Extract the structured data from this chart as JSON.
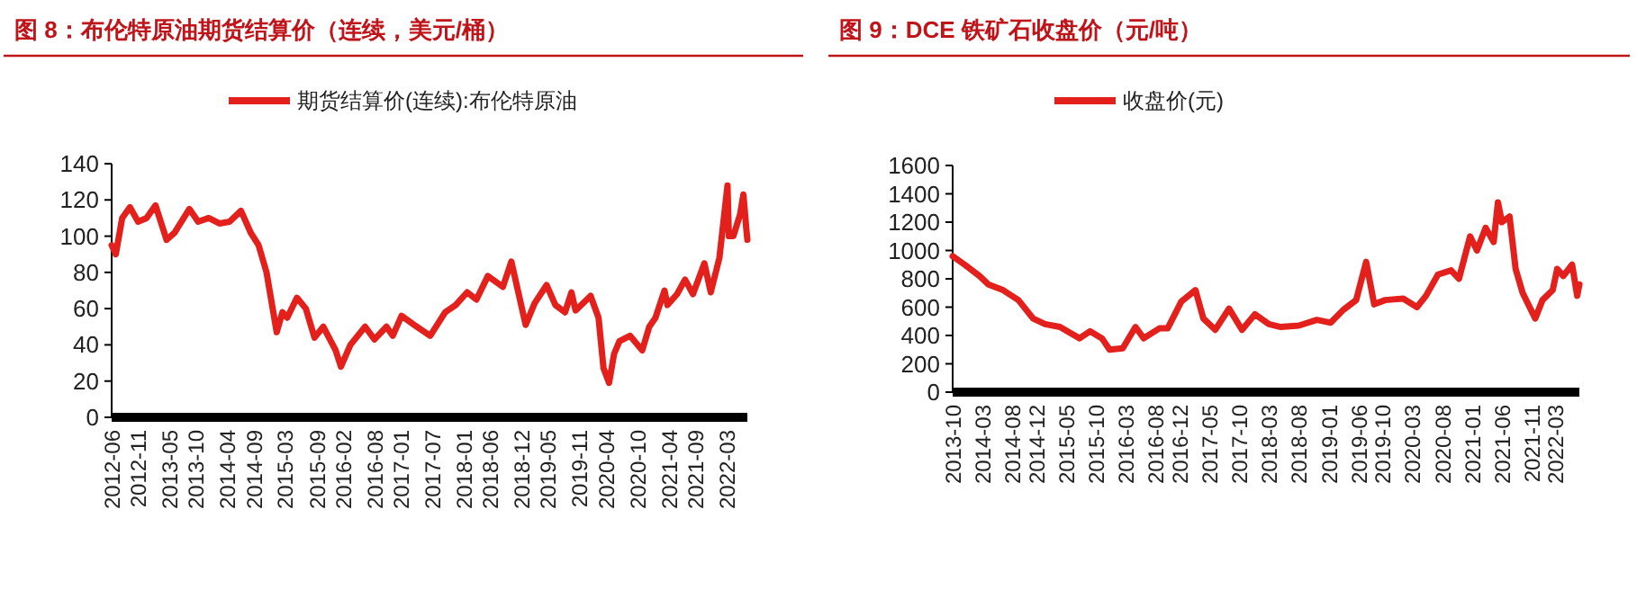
{
  "chart_data": [
    {
      "type": "line",
      "title": "图 8：布伦特原油期货结算价（连续，美元/桶）",
      "legend": "top",
      "grid": false,
      "xlim": [
        "2012-06",
        "2022-07"
      ],
      "ylim": [
        0,
        140
      ],
      "yticks": [
        0,
        20,
        40,
        60,
        80,
        100,
        120,
        140
      ],
      "xticks": [
        "2012-06",
        "2012-11",
        "2013-05",
        "2013-10",
        "2014-04",
        "2014-09",
        "2015-03",
        "2015-09",
        "2016-02",
        "2016-08",
        "2017-01",
        "2017-07",
        "2018-01",
        "2018-06",
        "2018-12",
        "2019-05",
        "2019-11",
        "2020-04",
        "2020-10",
        "2021-04",
        "2021-09",
        "2022-03"
      ],
      "series": [
        {
          "name": "期货结算价(连续):布伦特原油",
          "color": "#e3201b",
          "x": [
            "2012-06-01",
            "2012-06-25",
            "2012-08-01",
            "2012-09-15",
            "2012-11-01",
            "2012-12-20",
            "2013-02-10",
            "2013-04-15",
            "2013-06-01",
            "2013-08-25",
            "2013-10-15",
            "2013-12-15",
            "2014-02-15",
            "2014-04-15",
            "2014-06-20",
            "2014-08-15",
            "2014-09-30",
            "2014-11-15",
            "2015-01-13",
            "2015-02-15",
            "2015-03-15",
            "2015-05-10",
            "2015-07-01",
            "2015-08-20",
            "2015-10-10",
            "2015-12-20",
            "2016-01-20",
            "2016-03-15",
            "2016-06-08",
            "2016-08-01",
            "2016-10-10",
            "2016-11-15",
            "2017-01-05",
            "2017-03-20",
            "2017-06-20",
            "2017-09-15",
            "2017-11-15",
            "2018-01-20",
            "2018-03-15",
            "2018-05-20",
            "2018-08-15",
            "2018-10-03",
            "2018-12-25",
            "2019-02-15",
            "2019-04-25",
            "2019-06-15",
            "2019-08-10",
            "2019-09-16",
            "2019-10-10",
            "2020-01-05",
            "2020-02-20",
            "2020-03-20",
            "2020-04-21",
            "2020-05-20",
            "2020-06-20",
            "2020-08-20",
            "2020-10-30",
            "2020-12-10",
            "2021-01-15",
            "2021-03-08",
            "2021-03-25",
            "2021-05-20",
            "2021-07-05",
            "2021-08-20",
            "2021-10-25",
            "2021-12-01",
            "2022-01-20",
            "2022-03-08",
            "2022-03-16",
            "2022-04-11",
            "2022-05-20",
            "2022-06-08",
            "2022-06-25",
            "2022-07-01"
          ],
          "values": [
            95,
            90,
            110,
            116,
            108,
            110,
            117,
            98,
            102,
            115,
            108,
            110,
            107,
            108,
            114,
            102,
            95,
            80,
            47,
            58,
            55,
            66,
            60,
            44,
            50,
            37,
            28,
            40,
            50,
            43,
            50,
            45,
            56,
            51,
            45,
            58,
            62,
            69,
            65,
            78,
            72,
            86,
            51,
            63,
            73,
            62,
            58,
            69,
            59,
            67,
            55,
            27,
            19,
            35,
            42,
            45,
            37,
            50,
            55,
            70,
            62,
            68,
            76,
            68,
            85,
            69,
            88,
            128,
            100,
            100,
            112,
            123,
            104,
            98
          ]
        }
      ]
    },
    {
      "type": "line",
      "title": "图 9：DCE 铁矿石收盘价（元/吨）",
      "legend": "top",
      "grid": false,
      "xlim": [
        "2013-10",
        "2022-07"
      ],
      "ylim": [
        0,
        1600
      ],
      "yticks": [
        0,
        200,
        400,
        600,
        800,
        1000,
        1200,
        1400,
        1600
      ],
      "xticks": [
        "2013-10",
        "2014-03",
        "2014-08",
        "2014-12",
        "2015-05",
        "2015-10",
        "2016-03",
        "2016-08",
        "2016-12",
        "2017-05",
        "2017-10",
        "2018-03",
        "2018-08",
        "2019-01",
        "2019-06",
        "2019-10",
        "2020-03",
        "2020-08",
        "2021-01",
        "2021-06",
        "2021-11",
        "2022-03"
      ],
      "series": [
        {
          "name": "收盘价(元)",
          "color": "#e3201b",
          "x": [
            "2013-10-01",
            "2013-12-01",
            "2014-02-15",
            "2014-04-01",
            "2014-06-15",
            "2014-09-01",
            "2014-11-15",
            "2015-01-15",
            "2015-04-01",
            "2015-05-20",
            "2015-07-10",
            "2015-09-01",
            "2015-11-01",
            "2015-12-10",
            "2016-02-15",
            "2016-04-20",
            "2016-06-01",
            "2016-08-20",
            "2016-10-01",
            "2016-12-10",
            "2017-02-20",
            "2017-04-01",
            "2017-06-01",
            "2017-08-10",
            "2017-10-15",
            "2017-12-20",
            "2018-03-01",
            "2018-05-01",
            "2018-08-01",
            "2018-11-01",
            "2019-01-10",
            "2019-03-15",
            "2019-05-20",
            "2019-07-10",
            "2019-08-20",
            "2019-10-15",
            "2020-01-15",
            "2020-03-25",
            "2020-05-10",
            "2020-07-10",
            "2020-09-15",
            "2020-10-25",
            "2020-12-21",
            "2021-01-25",
            "2021-03-10",
            "2021-04-20",
            "2021-05-12",
            "2021-06-01",
            "2021-07-10",
            "2021-08-10",
            "2021-09-15",
            "2021-11-18",
            "2021-12-25",
            "2022-02-15",
            "2022-03-10",
            "2022-04-10",
            "2022-05-25",
            "2022-06-20",
            "2022-07-01"
          ],
          "values": [
            960,
            900,
            820,
            760,
            720,
            650,
            520,
            480,
            460,
            420,
            380,
            430,
            380,
            300,
            310,
            460,
            380,
            450,
            450,
            640,
            720,
            520,
            440,
            590,
            440,
            550,
            480,
            460,
            470,
            510,
            490,
            580,
            650,
            920,
            620,
            650,
            660,
            600,
            680,
            830,
            860,
            800,
            1100,
            1000,
            1160,
            1060,
            1340,
            1200,
            1240,
            870,
            700,
            520,
            650,
            720,
            870,
            820,
            900,
            680,
            760
          ]
        }
      ]
    }
  ]
}
